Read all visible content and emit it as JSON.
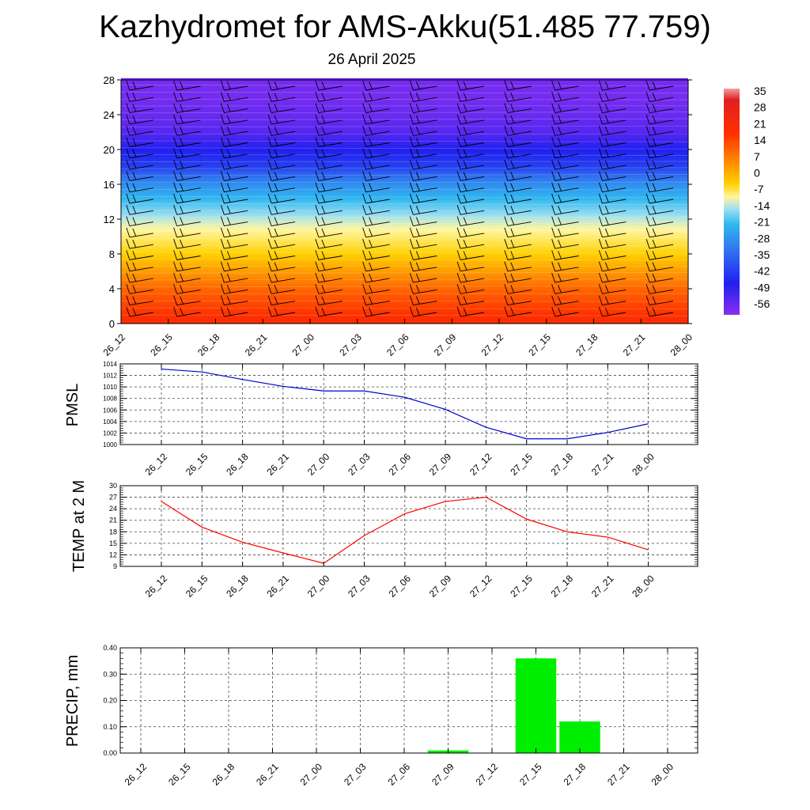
{
  "title": "Kazhydromet for AMS-Akku(51.485 77.759)",
  "subtitle": "26 April 2025",
  "time_labels": [
    "26_12",
    "26_15",
    "26_18",
    "26_21",
    "27_00",
    "27_03",
    "27_06",
    "27_09",
    "27_12",
    "27_15",
    "27_18",
    "27_21",
    "28_00"
  ],
  "chart_data": [
    {
      "type": "heatmap",
      "title": "",
      "xlabel": "",
      "ylabel": "",
      "x": [
        "26_12",
        "26_15",
        "26_18",
        "26_21",
        "27_00",
        "27_03",
        "27_06",
        "27_09",
        "27_12",
        "27_15",
        "27_18",
        "27_21",
        "28_00"
      ],
      "y_ticks": [
        0,
        4,
        8,
        12,
        16,
        20,
        24,
        28
      ],
      "ylim": [
        0,
        28
      ],
      "colorbar_labels": [
        35,
        28,
        21,
        14,
        7,
        0,
        -7,
        -14,
        -21,
        -28,
        -35,
        -42,
        -49,
        -56
      ],
      "colorbar_range": [
        -60,
        38
      ],
      "temperature_profile": [
        {
          "level": 0,
          "value": 22
        },
        {
          "level": 2,
          "value": 18
        },
        {
          "level": 4,
          "value": 14
        },
        {
          "level": 6,
          "value": 8
        },
        {
          "level": 8,
          "value": 2
        },
        {
          "level": 10,
          "value": -5
        },
        {
          "level": 12,
          "value": -12
        },
        {
          "level": 14,
          "value": -22
        },
        {
          "level": 16,
          "value": -32
        },
        {
          "level": 18,
          "value": -45
        },
        {
          "level": 20,
          "value": -50
        },
        {
          "level": 22,
          "value": -55
        },
        {
          "level": 24,
          "value": -57
        },
        {
          "level": 26,
          "value": -58
        },
        {
          "level": 28,
          "value": -58
        }
      ],
      "overlay": "wind barbs"
    },
    {
      "type": "line",
      "ylabel": "PMSL",
      "x": [
        "26_12",
        "26_15",
        "26_18",
        "26_21",
        "27_00",
        "27_03",
        "27_06",
        "27_09",
        "27_12",
        "27_15",
        "27_18",
        "27_21",
        "28_00"
      ],
      "series": [
        {
          "values": [
            1013.1,
            1012.6,
            1011.3,
            1010.1,
            1009.3,
            1009.3,
            1008.2,
            1006.1,
            1003.0,
            1001.0,
            1001.0,
            1002.1,
            1003.6
          ],
          "color": "#0000cc"
        }
      ],
      "ylim": [
        1000,
        1014
      ],
      "y_ticks": [
        1000,
        1002,
        1004,
        1006,
        1008,
        1010,
        1012,
        1014
      ],
      "grid": true
    },
    {
      "type": "line",
      "ylabel": "TEMP at 2 M",
      "x": [
        "26_12",
        "26_15",
        "26_18",
        "26_21",
        "27_00",
        "27_03",
        "27_06",
        "27_09",
        "27_12",
        "27_15",
        "27_18",
        "27_21",
        "28_00"
      ],
      "series": [
        {
          "values": [
            25.9,
            19.2,
            15.3,
            12.5,
            9.8,
            17.0,
            22.7,
            25.9,
            27.0,
            21.3,
            18.0,
            16.6,
            13.3
          ],
          "color": "#ff0000"
        }
      ],
      "ylim": [
        9,
        30
      ],
      "y_ticks": [
        9,
        12,
        15,
        18,
        21,
        24,
        27,
        30
      ],
      "grid": true
    },
    {
      "type": "bar",
      "ylabel": "PRECIP, mm",
      "x": [
        "26_12",
        "26_15",
        "26_18",
        "26_21",
        "27_00",
        "27_03",
        "27_06",
        "27_09",
        "27_12",
        "27_15",
        "27_18",
        "27_21",
        "28_00"
      ],
      "values": [
        0,
        0,
        0,
        0,
        0,
        0,
        0,
        0.01,
        0,
        0.36,
        0.12,
        0,
        0
      ],
      "color": "#00ee00",
      "ylim": [
        0,
        0.4
      ],
      "y_ticks": [
        "0.00",
        "0.10",
        "0.20",
        "0.30",
        "0.40"
      ],
      "grid": true
    }
  ]
}
